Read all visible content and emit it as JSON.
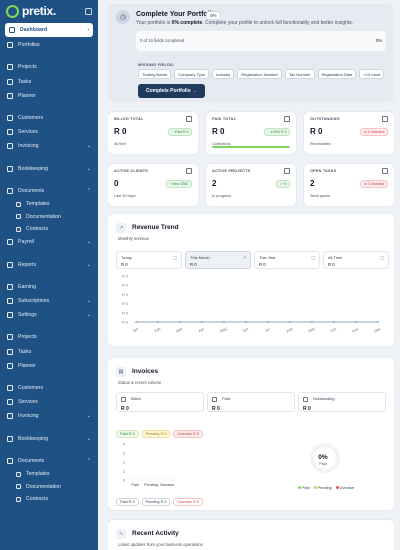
{
  "brand": {
    "name": "pretix.",
    "accent": "#7ed957",
    "sidebar_bg": "#1f5184"
  },
  "sidebar": {
    "items": [
      {
        "label": "Dashboard",
        "icon": "home-icon",
        "active": true,
        "chevron": "›"
      },
      {
        "label": "Portfolios",
        "icon": "folder-icon"
      },
      {
        "gap": true
      },
      {
        "label": "Projects",
        "icon": "briefcase-icon"
      },
      {
        "label": "Tasks",
        "icon": "check-icon"
      },
      {
        "label": "Planner",
        "icon": "calendar-icon"
      },
      {
        "gap": true
      },
      {
        "label": "Customers",
        "icon": "users-icon"
      },
      {
        "label": "Services",
        "icon": "tool-icon"
      },
      {
        "label": "Invoicing",
        "icon": "receipt-icon",
        "chevron": "⌄"
      },
      {
        "gap": true
      },
      {
        "label": "Bookkeeping",
        "icon": "book-icon",
        "chevron": "⌄"
      },
      {
        "gap": true
      },
      {
        "label": "Documents",
        "icon": "file-icon",
        "chevron": "⌃"
      },
      {
        "label": "Templates",
        "icon": "template-icon",
        "sub": true
      },
      {
        "label": "Documentation",
        "icon": "document-icon",
        "sub": true
      },
      {
        "label": "Contracts",
        "icon": "contract-icon",
        "sub": true
      },
      {
        "label": "Payroll",
        "icon": "wallet-icon",
        "chevron": "⌄"
      },
      {
        "gap": true
      },
      {
        "label": "Reports",
        "icon": "chart-icon",
        "chevron": "⌄"
      },
      {
        "gap": true
      },
      {
        "label": "Earning",
        "icon": "coin-icon"
      },
      {
        "label": "Subscriptions",
        "icon": "repeat-icon",
        "chevron": "⌄"
      },
      {
        "label": "Settings",
        "icon": "gear-icon",
        "chevron": "⌄"
      },
      {
        "gap": true
      },
      {
        "label": "Projects",
        "icon": "briefcase-icon"
      },
      {
        "label": "Tasks",
        "icon": "check-icon"
      },
      {
        "label": "Planner",
        "icon": "calendar-icon"
      },
      {
        "gap": true
      },
      {
        "label": "Customers",
        "icon": "users-icon"
      },
      {
        "label": "Services",
        "icon": "tool-icon"
      },
      {
        "label": "Invoicing",
        "icon": "receipt-icon",
        "chevron": "⌄"
      },
      {
        "gap": true
      },
      {
        "label": "Bookkeeping",
        "icon": "book-icon",
        "chevron": "⌄"
      },
      {
        "gap": true
      },
      {
        "label": "Documents",
        "icon": "file-icon",
        "chevron": "⌃"
      },
      {
        "label": "Templates",
        "icon": "template-icon",
        "sub": true
      },
      {
        "label": "Documentation",
        "icon": "document-icon",
        "sub": true
      },
      {
        "label": "Contracts",
        "icon": "contract-icon",
        "sub": true
      }
    ]
  },
  "portfolio": {
    "title": "Complete Your Portfolio",
    "badge": "0%",
    "subtitle_prefix": "Your portfolio is ",
    "subtitle_bold": "0% complete",
    "subtitle_suffix": ". Complete your profile to unlock full functionality and better insights.",
    "progress_label": "0 of 19 fields completed",
    "progress_pct": "0%",
    "missing_title": "MISSING FIELDS:",
    "missing_fields": [
      "Trading Name",
      "Company Type",
      "Industry",
      "Registration Number",
      "Tax Number",
      "Registration Date",
      "+13 more"
    ],
    "cta": "Complete Portfolio →"
  },
  "stats": [
    {
      "label": "BILLED TOTAL",
      "value": "R 0",
      "sub": "All time",
      "badge": "↑ Paid R 0",
      "badge_type": "green",
      "icon": "receipt-icon"
    },
    {
      "label": "PAID TOTAL",
      "value": "R 0",
      "sub": "Collections",
      "badge": "↑ 100% R 0",
      "badge_type": "green",
      "icon": "trend-icon",
      "progress": 1
    },
    {
      "label": "OUTSTANDING",
      "value": "R 0",
      "sub": "Receivables",
      "badge": "⊘ 0 Overdue",
      "badge_type": "red",
      "icon": "trash-icon"
    },
    {
      "label": "ACTIVE CLIENTS",
      "value": "0",
      "sub": "Last 90 days",
      "badge": "↑ New 2567",
      "badge_type": "green",
      "icon": "users-icon"
    },
    {
      "label": "ACTIVE PROJECTS",
      "value": "2",
      "sub": "In progress",
      "badge": "↑ +0",
      "badge_type": "green",
      "icon": "briefcase-icon"
    },
    {
      "label": "OPEN TASKS",
      "value": "2",
      "sub": "Work queue",
      "badge": "⊘ 0 Overdue",
      "badge_type": "red",
      "icon": "check-icon"
    }
  ],
  "revenue": {
    "title": "Revenue Trend",
    "subtitle": "Monthly revenue",
    "periods": [
      {
        "name": "Today",
        "value": "R 0",
        "icon": "calendar-icon"
      },
      {
        "name": "This Month",
        "value": "R 0",
        "icon": "trend-icon",
        "selected": true
      },
      {
        "name": "This Year",
        "value": "R 0",
        "icon": "calendar-icon"
      },
      {
        "name": "All Time",
        "value": "R 0",
        "icon": "clock-icon"
      }
    ]
  },
  "chart_data": [
    {
      "type": "line",
      "x": [
        "Jan",
        "Feb",
        "Mar",
        "Apr",
        "May",
        "Jun",
        "Jul",
        "Aug",
        "Sep",
        "Oct",
        "Nov",
        "Dec"
      ],
      "series": [
        {
          "values": [
            0,
            0,
            0,
            0,
            0,
            0,
            0,
            0,
            0,
            0,
            0,
            0
          ]
        }
      ],
      "yticks": [
        "R 0",
        "R 0",
        "R 0",
        "R 0",
        "R 0",
        "R 0"
      ],
      "grid": false
    },
    {
      "type": "bar",
      "categories": [
        "Paid",
        "Pending",
        "Overdue"
      ],
      "values": [
        0,
        0,
        0
      ],
      "yticks": [
        "4",
        "3",
        "2",
        "1",
        "0"
      ],
      "ylim": [
        0,
        4
      ]
    },
    {
      "type": "pie",
      "categories": [
        "Paid",
        "Pending",
        "Overdue"
      ],
      "values": [
        0,
        0,
        0
      ],
      "colors": [
        "#7ed957",
        "#f0c84a",
        "#e05555"
      ]
    }
  ],
  "invoices": {
    "title": "Invoices",
    "subtitle": "Status & recent volume",
    "boxes": [
      {
        "name": "Billed",
        "value": "R 0",
        "icon": "receipt-icon"
      },
      {
        "name": "Paid",
        "value": "R 0",
        "icon": "check-icon"
      },
      {
        "name": "Outstanding",
        "value": "R 0",
        "icon": "alert-icon"
      }
    ],
    "chips": {
      "paid": "Paid R 0",
      "pending": "Pending R 0",
      "overdue": "Overdue R 0"
    },
    "donut_pct": "0%",
    "donut_label": "Paid",
    "legend": [
      "Paid",
      "Pending",
      "Overdue"
    ],
    "footer": {
      "paid": "Paid R 0",
      "pending": "Pending R 0",
      "overdue": "Overdue R 0"
    }
  },
  "activity": {
    "title": "Recent Activity",
    "subtitle": "Latest updates from your business operations"
  }
}
